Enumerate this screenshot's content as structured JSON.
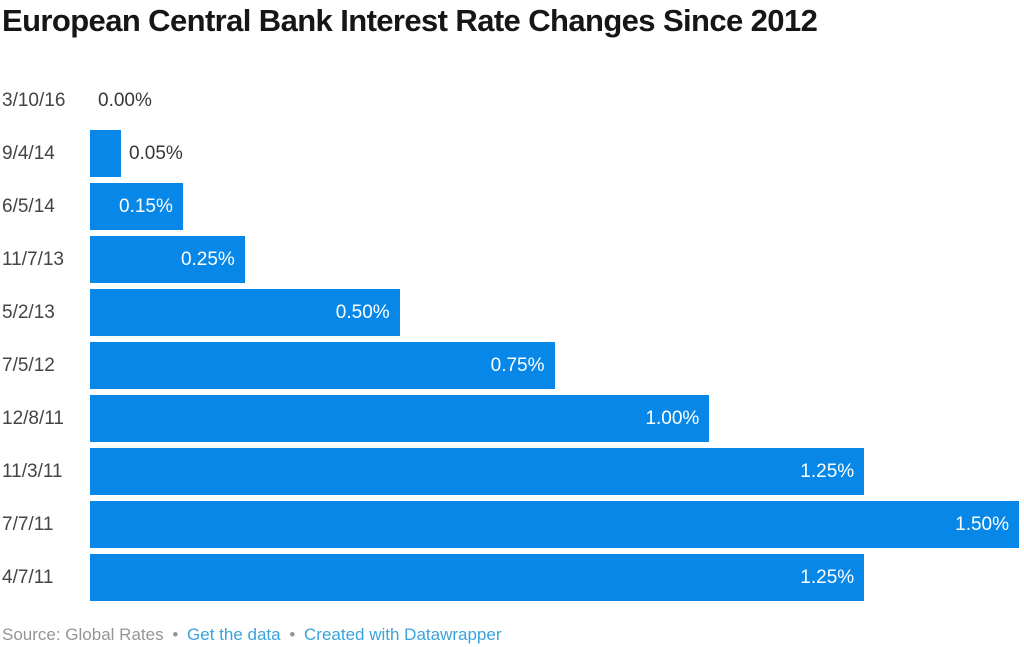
{
  "title": "European Central Bank Interest Rate Changes Since 2012",
  "chart_data": {
    "type": "bar",
    "orientation": "horizontal",
    "title": "European Central Bank Interest Rate Changes Since 2012",
    "categories": [
      "3/10/16",
      "9/4/14",
      "6/5/14",
      "11/7/13",
      "5/2/13",
      "7/5/12",
      "12/8/11",
      "11/3/11",
      "7/7/11",
      "4/7/11"
    ],
    "values": [
      0.0,
      0.05,
      0.15,
      0.25,
      0.5,
      0.75,
      1.0,
      1.25,
      1.5,
      1.25
    ],
    "value_labels": [
      "0.00%",
      "0.05%",
      "0.15%",
      "0.25%",
      "0.50%",
      "0.75%",
      "1.00%",
      "1.25%",
      "1.50%",
      "1.25%"
    ],
    "xlabel": "",
    "ylabel": "",
    "xlim": [
      0,
      1.5
    ],
    "grid": false,
    "legend": "none",
    "bar_color": "#0788e8",
    "value_label_inside_min": 0.15
  },
  "footer": {
    "source_label": "Source: Global Rates",
    "separator": "•",
    "links": [
      {
        "label": "Get the data"
      },
      {
        "label": "Created with Datawrapper"
      }
    ]
  },
  "colors": {
    "background": "#ffffff",
    "bar": "#0788e8",
    "title_text": "#161616",
    "axis_label": "#444444",
    "value_outside": "#373737",
    "value_inside": "#ffffff",
    "source_text": "#959595",
    "link": "#3aa3dc"
  }
}
